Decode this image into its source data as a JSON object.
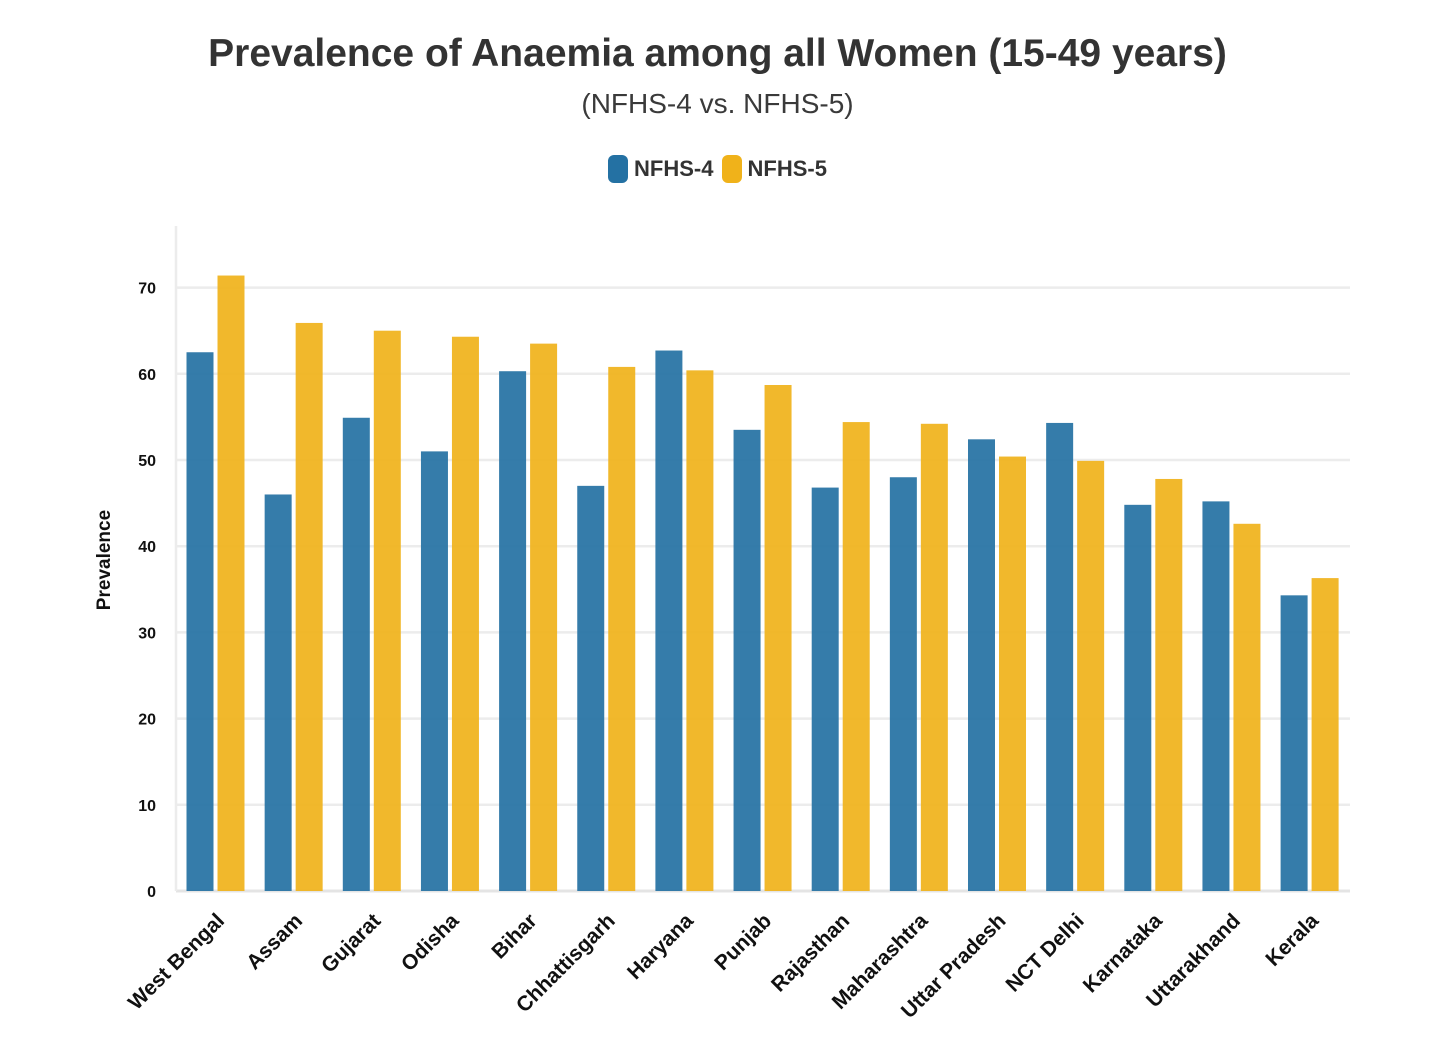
{
  "chart_data": {
    "type": "bar",
    "title": "Prevalence of Anaemia among all Women (15-49 years)",
    "subtitle": "(NFHS-4 vs. NFHS-5)",
    "xlabel": "",
    "ylabel": "Prevalence",
    "ylim": [
      0,
      77
    ],
    "yticks": [
      0,
      10,
      20,
      30,
      40,
      50,
      60,
      70
    ],
    "grid": true,
    "legend_position": "top-center",
    "categories": [
      "West Bengal",
      "Assam",
      "Gujarat",
      "Odisha",
      "Bihar",
      "Chhattisgarh",
      "Haryana",
      "Punjab",
      "Rajasthan",
      "Maharashtra",
      "Uttar Pradesh",
      "NCT Delhi",
      "Karnataka",
      "Uttarakhand",
      "Kerala"
    ],
    "series": [
      {
        "name": "NFHS-4",
        "color": "#2471a3",
        "values": [
          62.5,
          46.0,
          54.9,
          51.0,
          60.3,
          47.0,
          62.7,
          53.5,
          46.8,
          48.0,
          52.4,
          54.3,
          44.8,
          45.2,
          34.3
        ]
      },
      {
        "name": "NFHS-5",
        "color": "#f0b21a",
        "values": [
          71.4,
          65.9,
          65.0,
          64.3,
          63.5,
          60.8,
          60.4,
          58.7,
          54.4,
          54.2,
          50.4,
          49.9,
          47.8,
          42.6,
          36.3
        ]
      }
    ]
  }
}
